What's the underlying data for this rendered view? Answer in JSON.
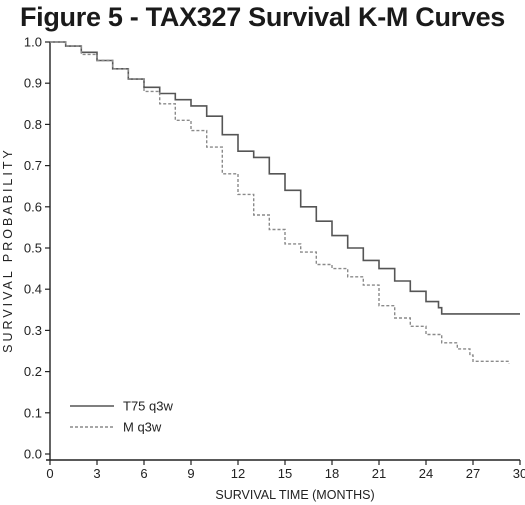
{
  "chart_data": {
    "type": "line",
    "title": "Figure 5 - TAX327 Survival K-M Curves",
    "xlabel": "SURVIVAL TIME (MONTHS)",
    "ylabel": "SURVIVAL PROBABILITY",
    "xlim": [
      0,
      30
    ],
    "ylim": [
      0,
      1.0
    ],
    "xticks": [
      "0",
      "3",
      "6",
      "9",
      "12",
      "15",
      "18",
      "21",
      "24",
      "27",
      "30"
    ],
    "yticks": [
      "0.0",
      "0.1",
      "0.2",
      "0.3",
      "0.4",
      "0.5",
      "0.6",
      "0.7",
      "0.8",
      "0.9",
      "1.0"
    ],
    "legend_position": "bottom-left",
    "grid": false,
    "series": [
      {
        "name": "T75 q3w",
        "style": "solid",
        "color": "#555555",
        "x": [
          0,
          1,
          2,
          3,
          4,
          5,
          6,
          7,
          8,
          9,
          10,
          11,
          12,
          13,
          14,
          15,
          16,
          17,
          18,
          19,
          20,
          21,
          22,
          23,
          24,
          24.8,
          25,
          26,
          27,
          28,
          29,
          30
        ],
        "y": [
          1.0,
          0.99,
          0.975,
          0.955,
          0.935,
          0.91,
          0.89,
          0.875,
          0.86,
          0.845,
          0.82,
          0.775,
          0.735,
          0.72,
          0.68,
          0.64,
          0.6,
          0.565,
          0.53,
          0.5,
          0.47,
          0.45,
          0.42,
          0.395,
          0.37,
          0.355,
          0.34,
          0.34,
          0.34,
          0.34,
          0.34,
          0.34
        ]
      },
      {
        "name": "M q3w",
        "style": "dashed",
        "color": "#8a8a8a",
        "x": [
          0,
          1,
          2,
          3,
          4,
          5,
          6,
          7,
          8,
          9,
          10,
          11,
          12,
          13,
          14,
          15,
          16,
          17,
          18,
          19,
          20,
          21,
          22,
          23,
          24,
          25,
          26,
          26.8,
          27,
          28,
          29.3
        ],
        "y": [
          1.0,
          0.99,
          0.97,
          0.955,
          0.935,
          0.91,
          0.88,
          0.85,
          0.81,
          0.785,
          0.745,
          0.68,
          0.63,
          0.58,
          0.545,
          0.51,
          0.49,
          0.46,
          0.45,
          0.43,
          0.41,
          0.36,
          0.33,
          0.31,
          0.29,
          0.27,
          0.255,
          0.24,
          0.225,
          0.225,
          0.22
        ]
      }
    ]
  }
}
